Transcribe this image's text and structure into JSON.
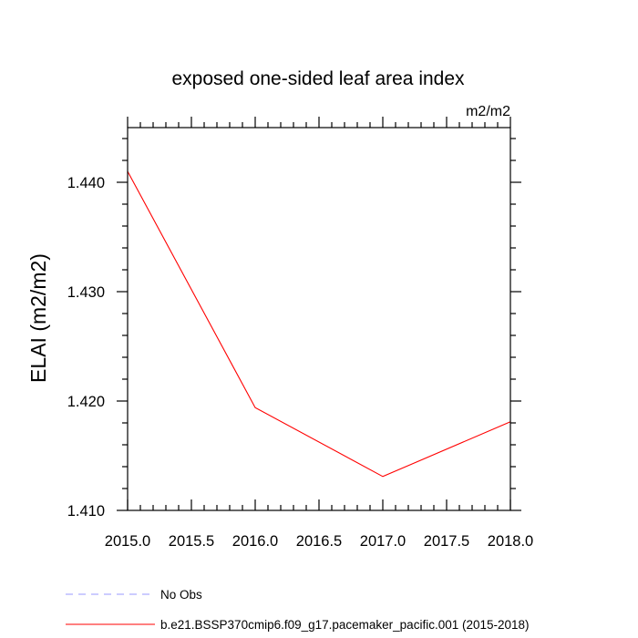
{
  "chart_data": {
    "type": "line",
    "title": "exposed one-sided leaf area index",
    "units_label": "m2/m2",
    "ylabel": "ELAI  (m2/m2)",
    "xlabel": "",
    "xlim": [
      2015.0,
      2018.0
    ],
    "ylim": [
      1.41,
      1.445
    ],
    "x_ticks": [
      2015.0,
      2015.5,
      2016.0,
      2016.5,
      2017.0,
      2017.5,
      2018.0
    ],
    "x_tick_labels": [
      "2015.0",
      "2015.5",
      "2016.0",
      "2016.5",
      "2017.0",
      "2017.5",
      "2018.0"
    ],
    "y_ticks": [
      1.41,
      1.42,
      1.43,
      1.44
    ],
    "y_tick_labels": [
      "1.410",
      "1.420",
      "1.430",
      "1.440"
    ],
    "y_minor_step": 0.002,
    "x_minor_step": 0.1,
    "grid": false,
    "series": [
      {
        "name": "b.e21.BSSP370cmip6.f09_g17.pacemaker_pacific.001 (2015-2018)",
        "color": "#ff0000",
        "dash": "solid",
        "x": [
          2015.0,
          2016.0,
          2017.0,
          2018.0
        ],
        "y": [
          1.441,
          1.4194,
          1.4131,
          1.4181
        ]
      }
    ],
    "legend": {
      "placement": "bottom-left",
      "entries": [
        {
          "label": "No Obs",
          "color": "#9999ff",
          "dash": "dashed"
        },
        {
          "label": "b.e21.BSSP370cmip6.f09_g17.pacemaker_pacific.001 (2015-2018)",
          "color": "#ff0000",
          "dash": "solid"
        }
      ]
    }
  }
}
